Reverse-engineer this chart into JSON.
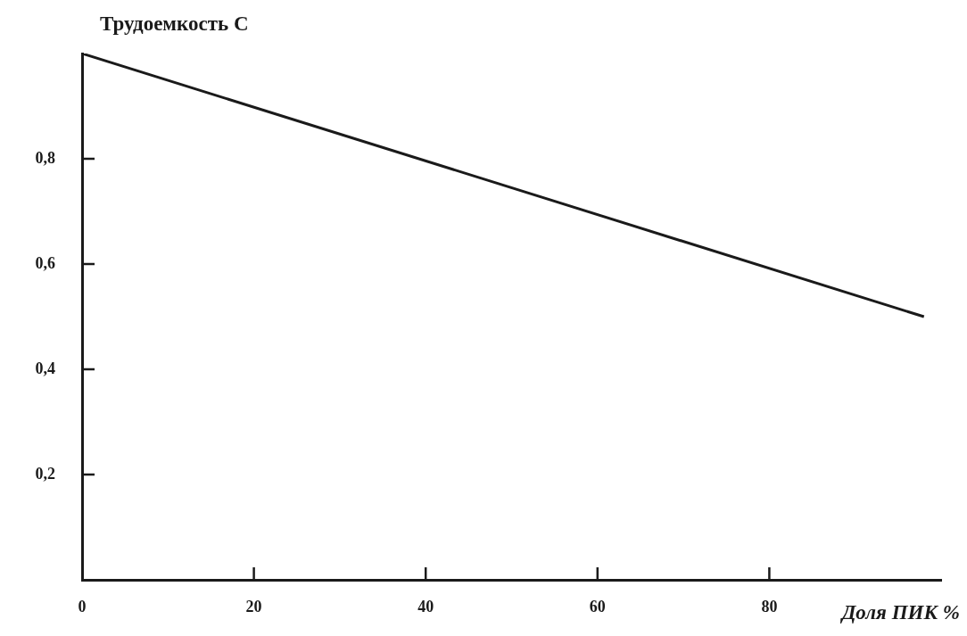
{
  "chart_data": {
    "type": "line",
    "xlabel": "Доля ПИК %",
    "ylabel": "Трудоемкость C",
    "x": [
      0,
      98
    ],
    "values": [
      1.0,
      0.5
    ],
    "color": "#1a1a1a",
    "xlim": [
      0,
      100
    ],
    "ylim": [
      0,
      1.0
    ],
    "xticks": [
      0,
      20,
      40,
      60,
      80
    ],
    "yticks": [
      {
        "value": 0.2,
        "label": "0,2"
      },
      {
        "value": 0.4,
        "label": "0,4"
      },
      {
        "value": 0.6,
        "label": "0,6"
      },
      {
        "value": 0.8,
        "label": "0,8"
      }
    ],
    "grid": false,
    "legend": false,
    "marker": "none",
    "line_style": "solid"
  }
}
